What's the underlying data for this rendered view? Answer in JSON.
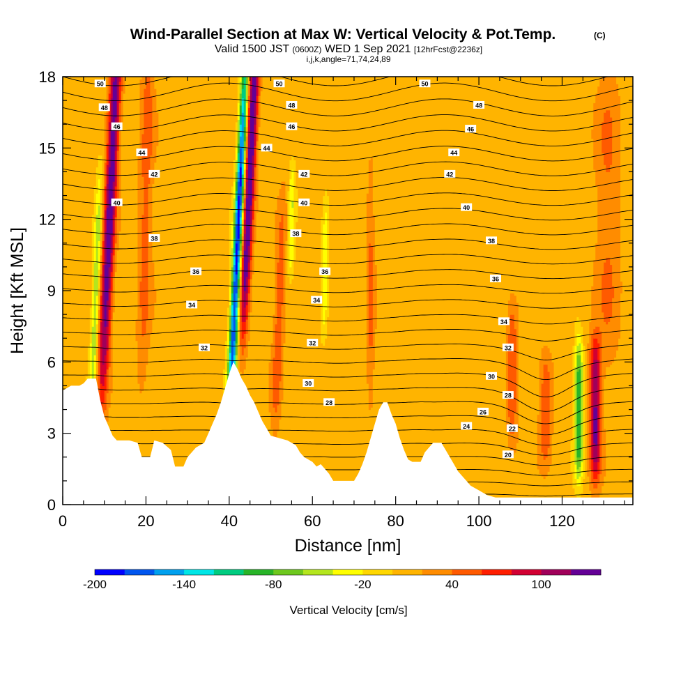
{
  "header": {
    "title": "Wind-Parallel Section at Max W: Vertical Velocity & Pot.Temp.",
    "copyright": "(C)",
    "valid_prefix": "Valid 1500 JST",
    "valid_utc": "(0600Z)",
    "valid_date": "WED 1 Sep 2021",
    "forecast": "[12hrFcst@2236z]",
    "indices": "i,j,k,angle=71,74,24,89"
  },
  "colors": {
    "velocity_scale": [
      "#0000ff",
      "#0055ee",
      "#00a0ee",
      "#00e6e6",
      "#00cc80",
      "#28b428",
      "#6ec81e",
      "#b4e61e",
      "#ffff00",
      "#ffd700",
      "#ffb400",
      "#ff8c00",
      "#ff5a00",
      "#ff1e00",
      "#d20032",
      "#a0005a",
      "#640096"
    ],
    "terrain": "#ffffff",
    "contour": "#000000"
  },
  "chart_data": {
    "type": "heatmap",
    "title": "Wind-Parallel Section at Max W: Vertical Velocity & Pot.Temp.",
    "xlabel": "Distance [nm]",
    "ylabel": "Height [Kft MSL]",
    "xlim": [
      0,
      137
    ],
    "ylim": [
      0,
      18
    ],
    "x_ticks": [
      0,
      20,
      40,
      60,
      80,
      100,
      120
    ],
    "x_tick_labels": [
      "0",
      "20",
      "40",
      "60",
      "80",
      "100",
      "120"
    ],
    "y_ticks": [
      0,
      3,
      6,
      9,
      12,
      15,
      18
    ],
    "y_tick_labels": [
      "0",
      "3",
      "6",
      "9",
      "12",
      "15",
      "18"
    ],
    "colorbar": {
      "label": "Vertical Velocity [cm/s]",
      "min": -200,
      "max": 140,
      "step": 20,
      "tick_values": [
        -200,
        -140,
        -80,
        -20,
        40,
        100
      ],
      "tick_labels": [
        "-200",
        "-140",
        "-80",
        "-20",
        "40",
        "100"
      ]
    },
    "background_velocity": 10,
    "velocity_features": [
      {
        "x": 11.5,
        "z_center": 13,
        "z_half": 9,
        "x_width": 1.4,
        "w": 130,
        "tilt": 0.25
      },
      {
        "x": 8,
        "z_center": 9,
        "z_half": 5,
        "x_width": 0.9,
        "w": -70,
        "tilt": 0.2
      },
      {
        "x": 42,
        "z_center": 11,
        "z_half": 8,
        "x_width": 1.0,
        "w": -200,
        "tilt": 0.25
      },
      {
        "x": 45,
        "z_center": 14,
        "z_half": 7,
        "x_width": 1.2,
        "w": 140,
        "tilt": 0.25
      },
      {
        "x": 20,
        "z_center": 13,
        "z_half": 8,
        "x_width": 1.6,
        "w": 40,
        "tilt": 0.1
      },
      {
        "x": 52,
        "z_center": 8,
        "z_half": 5,
        "x_width": 1.2,
        "w": 45,
        "tilt": 0.2
      },
      {
        "x": 55,
        "z_center": 12,
        "z_half": 2.5,
        "x_width": 0.8,
        "w": -50,
        "tilt": 0.1
      },
      {
        "x": 63,
        "z_center": 10,
        "z_half": 3,
        "x_width": 0.8,
        "w": -45,
        "tilt": 0.1
      },
      {
        "x": 74,
        "z_center": 9,
        "z_half": 5,
        "x_width": 1.0,
        "w": 35,
        "tilt": 0.0
      },
      {
        "x": 108,
        "z_center": 5.5,
        "z_half": 3,
        "x_width": 1.2,
        "w": 50,
        "tilt": 0.0
      },
      {
        "x": 116,
        "z_center": 4,
        "z_half": 2.5,
        "x_width": 1.5,
        "w": 45,
        "tilt": 0.0
      },
      {
        "x": 124,
        "z_center": 4,
        "z_half": 3,
        "x_width": 1.0,
        "w": -110,
        "tilt": 0.0
      },
      {
        "x": 128,
        "z_center": 4,
        "z_half": 3,
        "x_width": 1.3,
        "w": 115,
        "tilt": 0.0
      },
      {
        "x": 131,
        "z_center": 12,
        "z_half": 7,
        "x_width": 3.0,
        "w": 30,
        "tilt": 0.0
      }
    ],
    "terrain_height_kft": [
      [
        0,
        4.8
      ],
      [
        2,
        5.0
      ],
      [
        4,
        5.0
      ],
      [
        5,
        5.1
      ],
      [
        6,
        5.3
      ],
      [
        8,
        5.3
      ],
      [
        9,
        4.4
      ],
      [
        10,
        3.7
      ],
      [
        11,
        3.3
      ],
      [
        12,
        2.9
      ],
      [
        13,
        2.7
      ],
      [
        16,
        2.7
      ],
      [
        18,
        2.6
      ],
      [
        19,
        2.0
      ],
      [
        21,
        2.0
      ],
      [
        22,
        2.7
      ],
      [
        24,
        2.6
      ],
      [
        26,
        2.3
      ],
      [
        27,
        1.6
      ],
      [
        29,
        1.6
      ],
      [
        30,
        2.0
      ],
      [
        32,
        2.4
      ],
      [
        34,
        2.6
      ],
      [
        35,
        3.0
      ],
      [
        36,
        3.4
      ],
      [
        37,
        3.8
      ],
      [
        38,
        4.3
      ],
      [
        39,
        4.9
      ],
      [
        40,
        5.5
      ],
      [
        41,
        6.0
      ],
      [
        42,
        5.7
      ],
      [
        43,
        5.3
      ],
      [
        44,
        5.0
      ],
      [
        45,
        4.6
      ],
      [
        46,
        4.3
      ],
      [
        47,
        3.9
      ],
      [
        48,
        3.5
      ],
      [
        49,
        3.2
      ],
      [
        50,
        2.9
      ],
      [
        52,
        2.8
      ],
      [
        54,
        2.7
      ],
      [
        56,
        2.5
      ],
      [
        57,
        2.2
      ],
      [
        58,
        2.0
      ],
      [
        60,
        1.8
      ],
      [
        61,
        1.6
      ],
      [
        62,
        1.7
      ],
      [
        63,
        1.5
      ],
      [
        64,
        1.3
      ],
      [
        65,
        1.0
      ],
      [
        68,
        1.0
      ],
      [
        70,
        1.0
      ],
      [
        71,
        1.3
      ],
      [
        72,
        1.7
      ],
      [
        73,
        2.2
      ],
      [
        74,
        2.8
      ],
      [
        75,
        3.4
      ],
      [
        76,
        4.0
      ],
      [
        77,
        4.3
      ],
      [
        78,
        4.3
      ],
      [
        79,
        3.8
      ],
      [
        80,
        3.4
      ],
      [
        81,
        2.8
      ],
      [
        82,
        2.3
      ],
      [
        83,
        1.9
      ],
      [
        84,
        1.8
      ],
      [
        86,
        1.8
      ],
      [
        87,
        2.2
      ],
      [
        88,
        2.4
      ],
      [
        89,
        2.6
      ],
      [
        91,
        2.6
      ],
      [
        92,
        2.3
      ],
      [
        93,
        2.0
      ],
      [
        94,
        1.7
      ],
      [
        95,
        1.4
      ],
      [
        96,
        1.2
      ],
      [
        97,
        1.0
      ],
      [
        98,
        0.8
      ],
      [
        100,
        0.6
      ],
      [
        102,
        0.4
      ],
      [
        104,
        0.3
      ],
      [
        106,
        0.3
      ],
      [
        110,
        0.3
      ],
      [
        120,
        0.3
      ],
      [
        130,
        0.3
      ],
      [
        137,
        0.3
      ]
    ],
    "potential_temperature_labels": [
      {
        "value": 50,
        "text": "50",
        "x": 9,
        "z": 17.7
      },
      {
        "value": 48,
        "text": "48",
        "x": 10,
        "z": 16.7
      },
      {
        "value": 46,
        "text": "46",
        "x": 13,
        "z": 15.9
      },
      {
        "value": 44,
        "text": "44",
        "x": 19,
        "z": 14.8
      },
      {
        "value": 42,
        "text": "42",
        "x": 22,
        "z": 13.9
      },
      {
        "value": 40,
        "text": "40",
        "x": 13,
        "z": 12.7
      },
      {
        "value": 38,
        "text": "38",
        "x": 22,
        "z": 11.2
      },
      {
        "value": 36,
        "text": "36",
        "x": 32,
        "z": 9.8
      },
      {
        "value": 34,
        "text": "34",
        "x": 31,
        "z": 8.4
      },
      {
        "value": 32,
        "text": "32",
        "x": 34,
        "z": 6.6
      },
      {
        "value": 50,
        "text": "50",
        "x": 52,
        "z": 17.7
      },
      {
        "value": 48,
        "text": "48",
        "x": 55,
        "z": 16.8
      },
      {
        "value": 46,
        "text": "46",
        "x": 55,
        "z": 15.9
      },
      {
        "value": 44,
        "text": "44",
        "x": 49,
        "z": 15.0
      },
      {
        "value": 42,
        "text": "42",
        "x": 58,
        "z": 13.9
      },
      {
        "value": 40,
        "text": "40",
        "x": 58,
        "z": 12.7
      },
      {
        "value": 38,
        "text": "38",
        "x": 56,
        "z": 11.4
      },
      {
        "value": 36,
        "text": "36",
        "x": 63,
        "z": 9.8
      },
      {
        "value": 34,
        "text": "34",
        "x": 61,
        "z": 8.6
      },
      {
        "value": 32,
        "text": "32",
        "x": 60,
        "z": 6.8
      },
      {
        "value": 30,
        "text": "30",
        "x": 59,
        "z": 5.1
      },
      {
        "value": 28,
        "text": "28",
        "x": 64,
        "z": 4.3
      },
      {
        "value": 50,
        "text": "50",
        "x": 87,
        "z": 17.7
      },
      {
        "value": 48,
        "text": "48",
        "x": 100,
        "z": 16.8
      },
      {
        "value": 46,
        "text": "46",
        "x": 98,
        "z": 15.8
      },
      {
        "value": 44,
        "text": "44",
        "x": 94,
        "z": 14.8
      },
      {
        "value": 42,
        "text": "42",
        "x": 93,
        "z": 13.9
      },
      {
        "value": 40,
        "text": "40",
        "x": 97,
        "z": 12.5
      },
      {
        "value": 38,
        "text": "38",
        "x": 103,
        "z": 11.1
      },
      {
        "value": 36,
        "text": "36",
        "x": 104,
        "z": 9.5
      },
      {
        "value": 34,
        "text": "34",
        "x": 106,
        "z": 7.7
      },
      {
        "value": 32,
        "text": "32",
        "x": 107,
        "z": 6.6
      },
      {
        "value": 30,
        "text": "30",
        "x": 103,
        "z": 5.4
      },
      {
        "value": 28,
        "text": "28",
        "x": 107,
        "z": 4.6
      },
      {
        "value": 26,
        "text": "26",
        "x": 101,
        "z": 3.9
      },
      {
        "value": 24,
        "text": "24",
        "x": 97,
        "z": 3.3
      },
      {
        "value": 22,
        "text": "22",
        "x": 108,
        "z": 3.2
      },
      {
        "value": 20,
        "text": "20",
        "x": 107,
        "z": 2.1
      }
    ]
  }
}
